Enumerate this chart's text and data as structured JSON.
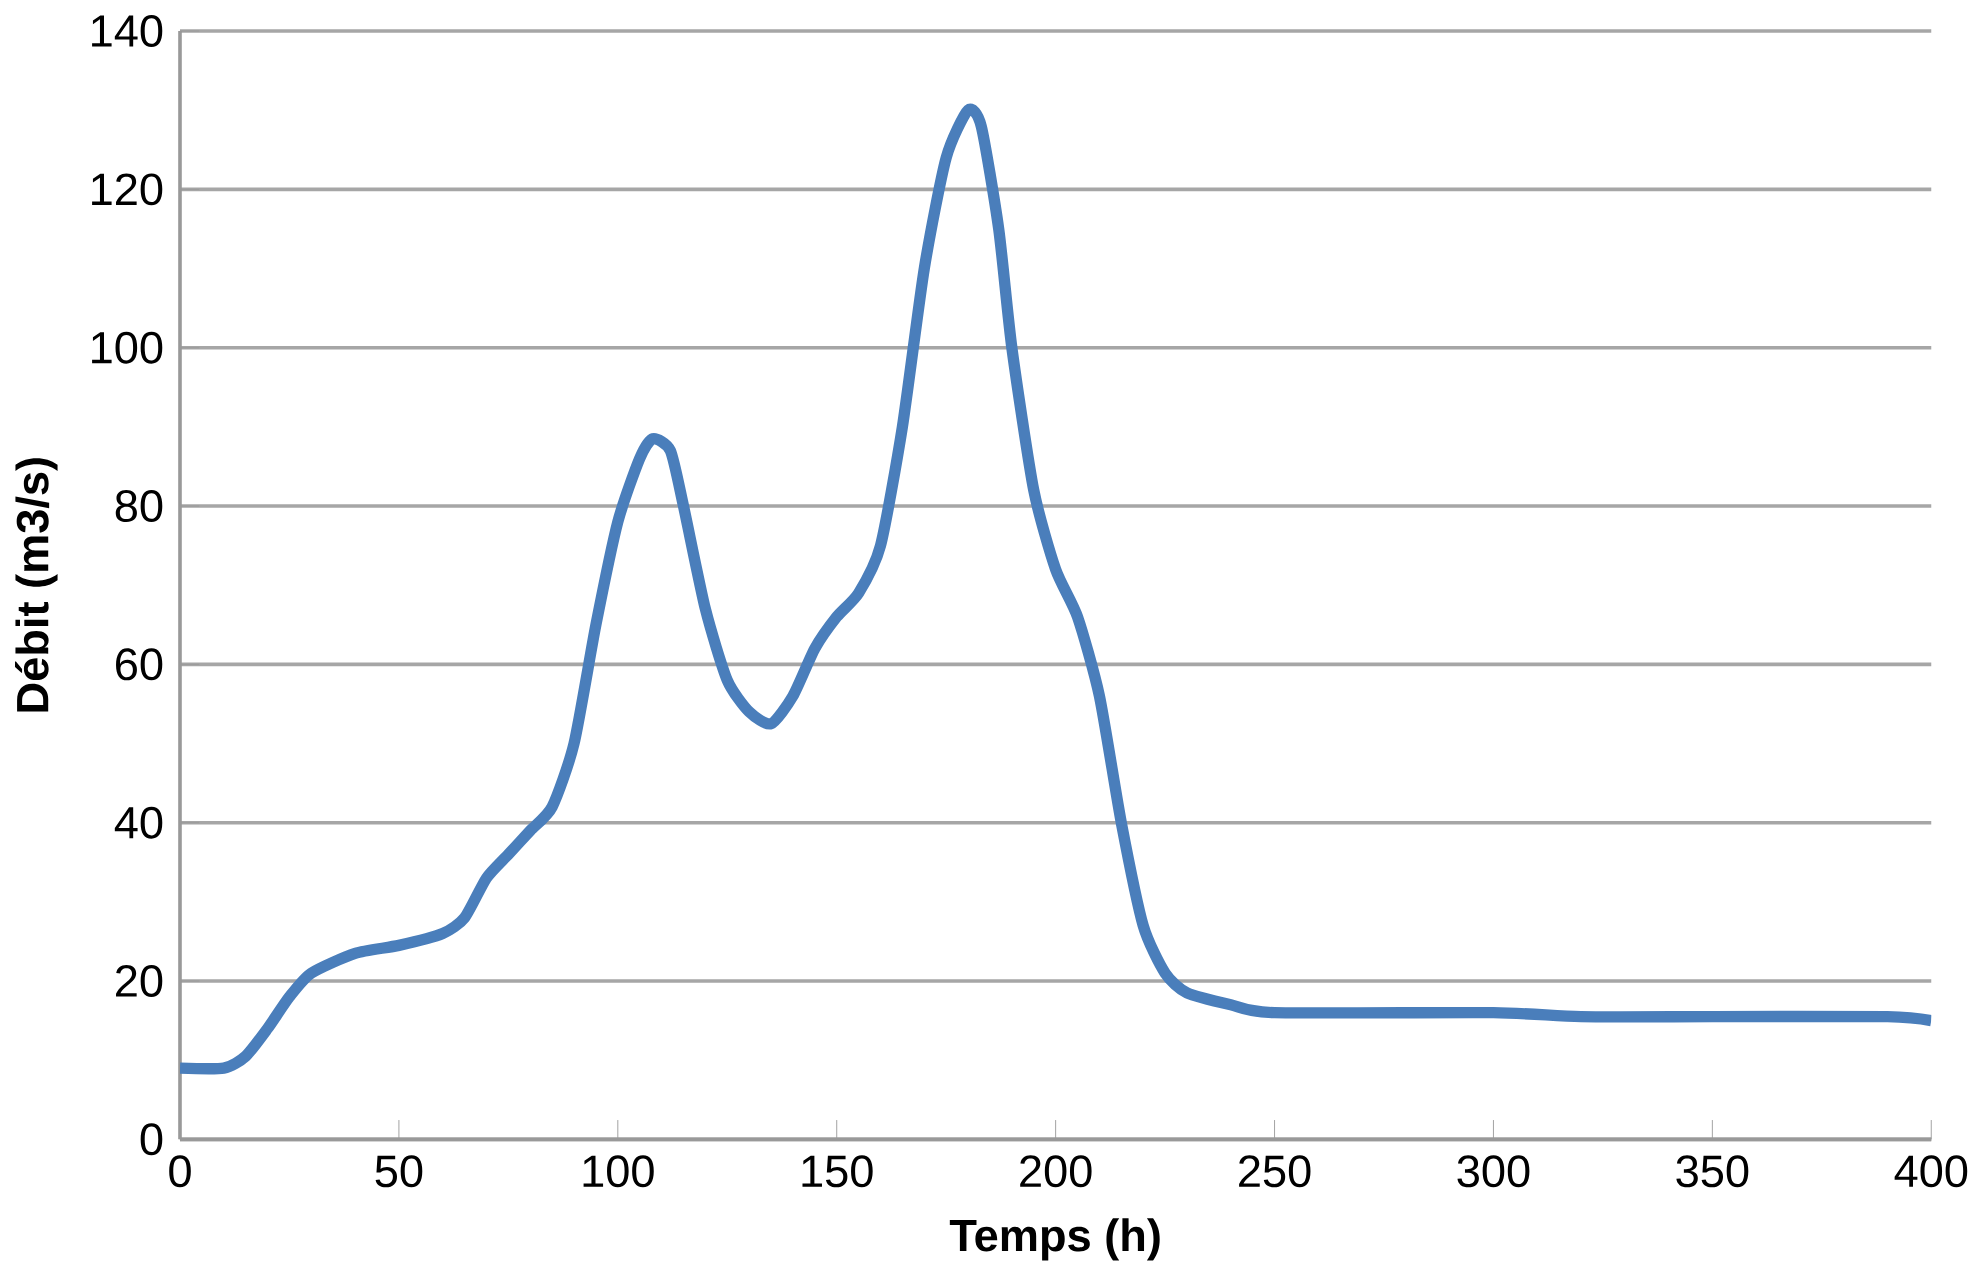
{
  "chart_data": {
    "type": "line",
    "xlabel": "Temps (h)",
    "ylabel": "Débit (m3/s)",
    "xlim": [
      0,
      400
    ],
    "xticks": [
      0,
      50,
      100,
      150,
      200,
      250,
      300,
      350,
      400
    ],
    "ylim": [
      0,
      140
    ],
    "yticks": [
      0,
      20,
      40,
      60,
      80,
      100,
      120,
      140
    ],
    "grid": "y",
    "series": [
      {
        "color": "#4a7ebb",
        "x": [
          0,
          10,
          15,
          20,
          25,
          30,
          40,
          50,
          60,
          65,
          70,
          75,
          80,
          85,
          90,
          95,
          100,
          105,
          108,
          112,
          115,
          120,
          125,
          130,
          135,
          140,
          145,
          150,
          155,
          160,
          165,
          170,
          175,
          180,
          183,
          187,
          190,
          195,
          200,
          205,
          210,
          215,
          220,
          225,
          230,
          240,
          250,
          300,
          320,
          350,
          390,
          400
        ],
        "values": [
          9,
          9,
          10.5,
          14,
          18,
          21,
          23.5,
          24.5,
          26,
          28,
          33,
          36,
          39,
          42,
          50,
          65,
          78,
          86,
          88.5,
          87,
          80,
          67,
          58,
          54,
          52.5,
          56,
          62,
          66,
          69,
          75,
          90,
          110,
          124,
          130,
          128,
          115,
          100,
          82,
          72,
          66,
          56,
          40,
          27,
          21,
          18.5,
          17,
          16,
          16,
          15.5,
          15.5,
          15.5,
          15
        ]
      }
    ]
  }
}
